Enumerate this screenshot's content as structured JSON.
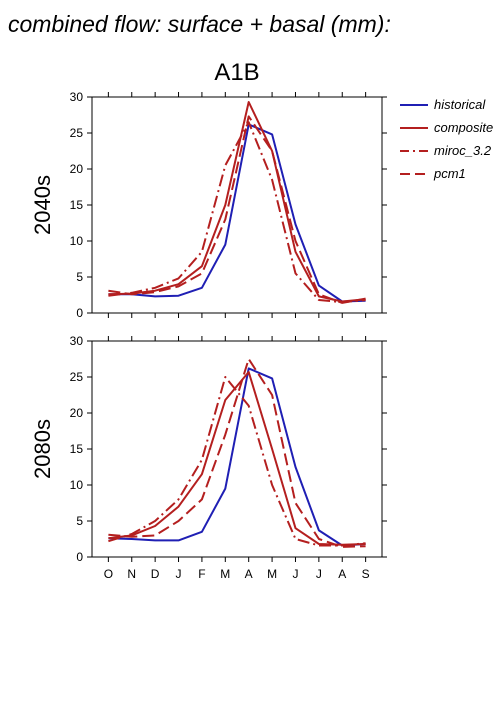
{
  "figure": {
    "title": "combined flow: surface + basal (mm):",
    "scenario": "A1B"
  },
  "colors": {
    "historical": "#1f1fb4",
    "composite": "#b41f1f",
    "miroc_3.2": "#b41f1f",
    "pcm1": "#b41f1f"
  },
  "chart_data": [
    {
      "type": "line",
      "panel_label": "2040s",
      "categories": [
        "O",
        "N",
        "D",
        "J",
        "F",
        "M",
        "A",
        "M",
        "J",
        "J",
        "A",
        "S"
      ],
      "ylim": [
        0,
        30
      ],
      "yticks": [
        0,
        5,
        10,
        15,
        20,
        25,
        30
      ],
      "grid": false,
      "legend": "right",
      "series": [
        {
          "name": "historical",
          "style": "solid",
          "values": [
            2.6,
            2.6,
            2.3,
            2.4,
            3.5,
            9.5,
            26.2,
            24.8,
            12.3,
            3.8,
            1.6,
            1.7
          ]
        },
        {
          "name": "composite",
          "style": "solid",
          "values": [
            2.6,
            2.7,
            3.1,
            4.0,
            6.5,
            15.0,
            29.3,
            22.5,
            8.5,
            2.3,
            1.6,
            1.9
          ]
        },
        {
          "name": "miroc_3.2",
          "style": "dashdot",
          "values": [
            2.4,
            2.8,
            3.5,
            4.8,
            8.5,
            20.5,
            26.5,
            18.5,
            5.5,
            1.8,
            1.5,
            1.8
          ]
        },
        {
          "name": "pcm1",
          "style": "dashed",
          "values": [
            3.1,
            2.6,
            2.9,
            3.7,
            5.5,
            13.0,
            27.3,
            22.5,
            10.0,
            2.6,
            1.4,
            2.0
          ]
        }
      ]
    },
    {
      "type": "line",
      "panel_label": "2080s",
      "categories": [
        "O",
        "N",
        "D",
        "J",
        "F",
        "M",
        "A",
        "M",
        "J",
        "J",
        "A",
        "S"
      ],
      "ylim": [
        0,
        30
      ],
      "yticks": [
        0,
        5,
        10,
        15,
        20,
        25,
        30
      ],
      "grid": false,
      "legend": "none",
      "series": [
        {
          "name": "historical",
          "style": "solid",
          "values": [
            2.6,
            2.5,
            2.3,
            2.3,
            3.5,
            9.5,
            26.2,
            24.8,
            12.5,
            3.7,
            1.6,
            1.8
          ]
        },
        {
          "name": "composite",
          "style": "solid",
          "values": [
            2.6,
            3.0,
            4.3,
            7.0,
            11.5,
            21.8,
            25.7,
            15.0,
            4.0,
            1.8,
            1.7,
            1.8
          ]
        },
        {
          "name": "miroc_3.2",
          "style": "dashdot",
          "values": [
            2.2,
            3.2,
            5.0,
            8.0,
            13.5,
            25.0,
            21.0,
            10.0,
            2.5,
            1.6,
            1.6,
            1.9
          ]
        },
        {
          "name": "pcm1",
          "style": "dashed",
          "values": [
            3.1,
            2.8,
            3.0,
            5.0,
            8.0,
            17.0,
            27.5,
            22.5,
            7.5,
            2.5,
            1.4,
            1.5
          ]
        }
      ]
    }
  ]
}
